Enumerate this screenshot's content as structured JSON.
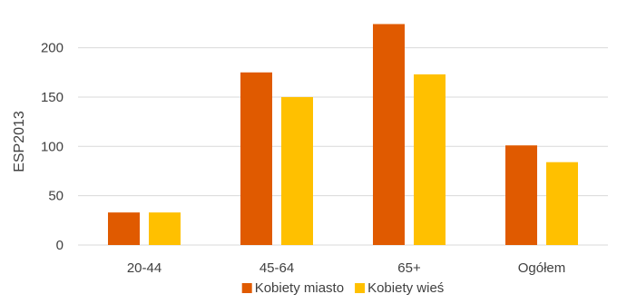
{
  "chart_data": {
    "type": "bar",
    "title": "",
    "xlabel": "",
    "ylabel": "ESP2013",
    "categories": [
      "20-44",
      "45-64",
      "65+",
      "Ogółem"
    ],
    "series": [
      {
        "name": "Kobiety miasto",
        "color": "#E05A00",
        "values": [
          33,
          175,
          224,
          101
        ]
      },
      {
        "name": "Kobiety wieś",
        "color": "#FFC000",
        "values": [
          33,
          150,
          173,
          84
        ]
      }
    ],
    "ylim": [
      0,
      230
    ],
    "yticks": [
      0,
      50,
      100,
      150,
      200
    ],
    "grid": true,
    "legend_position": "bottom",
    "gridline_color": "#D9D9D9",
    "axis_label_color": "#404040"
  }
}
